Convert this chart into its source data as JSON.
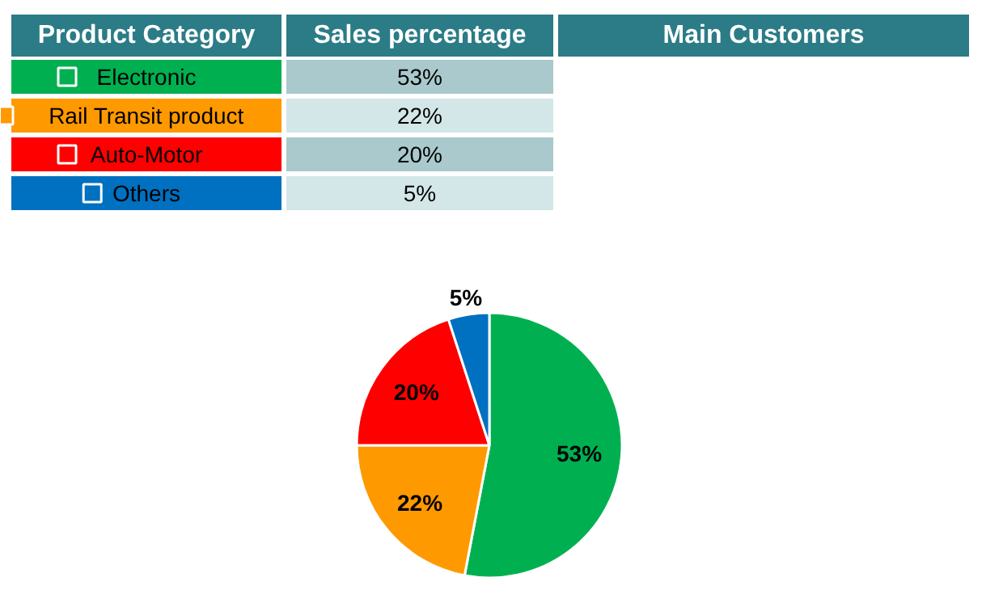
{
  "chart_data": {
    "type": "pie",
    "categories": [
      "Electronic",
      "Rail Transit product",
      "Auto-Motor",
      "Others"
    ],
    "values": [
      53,
      22,
      20,
      5
    ],
    "value_labels": [
      "53%",
      "22%",
      "20%",
      "5%"
    ],
    "colors": [
      "#00b050",
      "#ff9900",
      "#ff0000",
      "#0070c0"
    ],
    "legend": "top",
    "annotations": [
      "Product Category",
      "Sales percentage",
      "Main Customers"
    ]
  }
}
